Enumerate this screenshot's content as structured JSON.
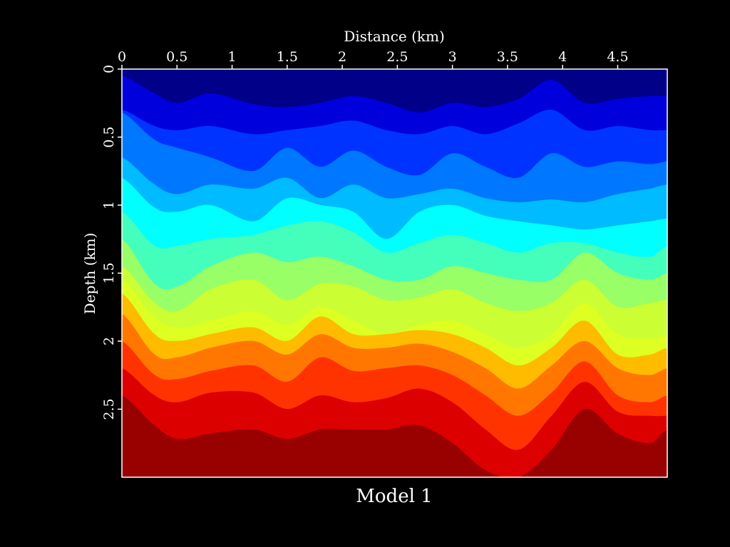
{
  "chart_data": {
    "type": "heatmap",
    "title": "Model 1",
    "xlabel": "Distance (km)",
    "ylabel": "Depth (km)",
    "x_axis_position": "top",
    "y_axis_inverted": true,
    "xlim": [
      0,
      4.95
    ],
    "ylim": [
      0,
      3.0
    ],
    "x_ticks": [
      0,
      0.5,
      1,
      1.5,
      2,
      2.5,
      3,
      3.5,
      4,
      4.5
    ],
    "x_tick_labels": [
      "0",
      "0.5",
      "1",
      "1.5",
      "2",
      "2.5",
      "3",
      "3.5",
      "4",
      "4.5"
    ],
    "y_ticks": [
      0,
      0.5,
      1,
      1.5,
      2,
      2.5
    ],
    "y_tick_labels": [
      "0",
      "0.5",
      "1",
      "1.5",
      "2",
      "2.5"
    ],
    "grid": false,
    "colorbar": false,
    "layers": [
      {
        "color": "#000088"
      },
      {
        "color": "#0000dd"
      },
      {
        "color": "#0033ff"
      },
      {
        "color": "#0077ff"
      },
      {
        "color": "#00bbff"
      },
      {
        "color": "#00ffff"
      },
      {
        "color": "#44ffbb"
      },
      {
        "color": "#99ff66"
      },
      {
        "color": "#ccff33"
      },
      {
        "color": "#ddff22"
      },
      {
        "color": "#ffbb00"
      },
      {
        "color": "#ff7700"
      },
      {
        "color": "#ff3300"
      },
      {
        "color": "#dd0000"
      },
      {
        "color": "#990000"
      }
    ],
    "interface_x": [
      0,
      0.3,
      0.5,
      0.8,
      1.2,
      1.5,
      1.8,
      2.1,
      2.4,
      2.7,
      3.0,
      3.3,
      3.6,
      3.9,
      4.2,
      4.5,
      4.8,
      4.95
    ],
    "interfaces_depth": [
      [
        0.05,
        0.18,
        0.25,
        0.18,
        0.26,
        0.28,
        0.25,
        0.2,
        0.25,
        0.32,
        0.25,
        0.28,
        0.22,
        0.08,
        0.25,
        0.22,
        0.2,
        0.2
      ],
      [
        0.3,
        0.42,
        0.45,
        0.42,
        0.48,
        0.45,
        0.42,
        0.38,
        0.45,
        0.48,
        0.42,
        0.48,
        0.4,
        0.3,
        0.45,
        0.42,
        0.45,
        0.45
      ],
      [
        0.32,
        0.52,
        0.58,
        0.65,
        0.75,
        0.58,
        0.72,
        0.6,
        0.72,
        0.78,
        0.62,
        0.72,
        0.8,
        0.62,
        0.72,
        0.68,
        0.7,
        0.68
      ],
      [
        0.65,
        0.85,
        0.92,
        0.85,
        0.88,
        0.8,
        0.95,
        0.85,
        0.95,
        0.92,
        0.88,
        0.95,
        0.98,
        0.96,
        0.98,
        0.92,
        0.88,
        0.85
      ],
      [
        0.8,
        1.02,
        1.05,
        1.0,
        1.12,
        0.95,
        1.0,
        1.05,
        1.25,
        1.05,
        1.0,
        1.08,
        1.12,
        1.15,
        1.18,
        1.15,
        1.12,
        1.1
      ],
      [
        1.05,
        1.3,
        1.3,
        1.25,
        1.22,
        1.15,
        1.12,
        1.2,
        1.35,
        1.28,
        1.22,
        1.28,
        1.35,
        1.28,
        1.28,
        1.35,
        1.38,
        1.3
      ],
      [
        1.25,
        1.58,
        1.6,
        1.45,
        1.35,
        1.42,
        1.38,
        1.45,
        1.55,
        1.55,
        1.45,
        1.5,
        1.55,
        1.55,
        1.35,
        1.5,
        1.55,
        1.5
      ],
      [
        1.45,
        1.72,
        1.78,
        1.62,
        1.55,
        1.7,
        1.58,
        1.6,
        1.7,
        1.68,
        1.62,
        1.72,
        1.78,
        1.72,
        1.55,
        1.75,
        1.72,
        1.7
      ],
      [
        1.55,
        1.82,
        1.9,
        1.85,
        1.78,
        1.88,
        1.75,
        1.85,
        1.95,
        1.88,
        1.85,
        1.95,
        2.05,
        1.95,
        1.72,
        1.95,
        1.98,
        1.95
      ],
      [
        1.65,
        1.95,
        2.0,
        1.95,
        1.9,
        2.0,
        1.82,
        1.95,
        1.95,
        1.92,
        1.95,
        2.05,
        2.18,
        2.05,
        1.85,
        2.1,
        2.1,
        2.05
      ],
      [
        1.8,
        2.1,
        2.12,
        2.05,
        2.0,
        2.1,
        1.95,
        2.05,
        2.05,
        2.02,
        2.08,
        2.2,
        2.35,
        2.18,
        2.0,
        2.2,
        2.25,
        2.2
      ],
      [
        2.0,
        2.25,
        2.28,
        2.22,
        2.18,
        2.3,
        2.12,
        2.22,
        2.2,
        2.18,
        2.25,
        2.4,
        2.55,
        2.38,
        2.15,
        2.4,
        2.45,
        2.4
      ],
      [
        2.2,
        2.4,
        2.45,
        2.38,
        2.38,
        2.5,
        2.4,
        2.45,
        2.42,
        2.35,
        2.45,
        2.65,
        2.8,
        2.55,
        2.3,
        2.52,
        2.55,
        2.55
      ],
      [
        2.4,
        2.62,
        2.72,
        2.68,
        2.65,
        2.72,
        2.65,
        2.65,
        2.65,
        2.62,
        2.75,
        2.95,
        3.0,
        2.8,
        2.5,
        2.68,
        2.75,
        2.65
      ]
    ]
  }
}
